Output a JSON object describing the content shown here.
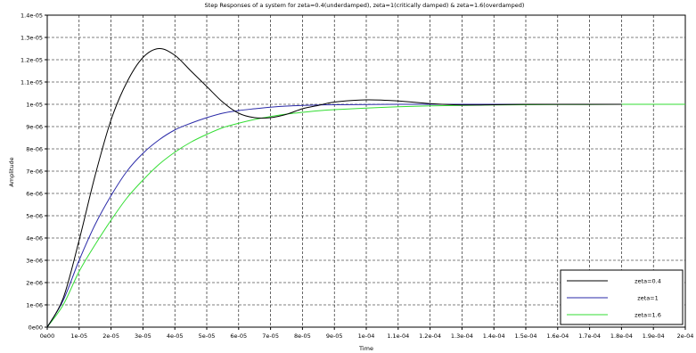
{
  "chart_data": {
    "type": "line",
    "title": "Step Responses of a system for zeta=0.4(underdamped), zeta=1(critically damped) & zeta=1.6(overdamped)",
    "xlabel": "Time",
    "ylabel": "Amplitude",
    "xlim": [
      0,
      0.0002
    ],
    "ylim": [
      0,
      1.4e-05
    ],
    "grid": true,
    "legend_position": "bottom-right",
    "x_tick_labels": [
      "0e00",
      "1e-05",
      "2e-05",
      "3e-05",
      "4e-05",
      "5e-05",
      "6e-05",
      "7e-05",
      "8e-05",
      "9e-05",
      "1e-04",
      "1.1e-04",
      "1.2e-04",
      "1.3e-04",
      "1.4e-04",
      "1.5e-04",
      "1.6e-04",
      "1.7e-04",
      "1.8e-04",
      "1.9e-04",
      "2e-04"
    ],
    "y_tick_labels": [
      "0e00",
      "1e-06",
      "2e-06",
      "3e-06",
      "4e-06",
      "5e-06",
      "6e-06",
      "7e-06",
      "8e-06",
      "9e-06",
      "1e-05",
      "1.1e-05",
      "1.2e-05",
      "1.3e-05",
      "1.4e-05"
    ],
    "x": [
      0,
      5e-06,
      1e-05,
      1.5e-05,
      2e-05,
      2.5e-05,
      3e-05,
      3.5e-05,
      4e-05,
      4.5e-05,
      5e-05,
      5.5e-05,
      6e-05,
      6.5e-05,
      7e-05,
      7.5e-05,
      8e-05,
      8.5e-05,
      9e-05,
      0.0001,
      0.00011,
      0.00012,
      0.00013,
      0.00014,
      0.00015,
      0.00016,
      0.00017,
      0.00018,
      0.00019,
      0.0002
    ],
    "series": [
      {
        "name": "zeta=0.4",
        "color": "#000000",
        "values": [
          0,
          1.3e-06,
          3.9e-06,
          6.8e-06,
          9.3e-06,
          1.1e-05,
          1.21e-05,
          1.25e-05,
          1.22e-05,
          1.15e-05,
          1.08e-05,
          1.01e-05,
          9.6e-06,
          9.4e-06,
          9.4e-06,
          9.55e-06,
          9.8e-06,
          9.95e-06,
          1.01e-05,
          1.02e-05,
          1.015e-05,
          1.003e-05,
          9.97e-06,
          9.98e-06,
          1e-05,
          1e-05,
          1e-05,
          1e-05,
          null,
          null
        ]
      },
      {
        "name": "zeta=1",
        "color": "#2a2aa8",
        "values": [
          0,
          1.2e-06,
          3e-06,
          4.6e-06,
          5.9e-06,
          7e-06,
          7.8e-06,
          8.4e-06,
          8.85e-06,
          9.15e-06,
          9.4e-06,
          9.6e-06,
          9.72e-06,
          9.8e-06,
          9.87e-06,
          9.92e-06,
          9.95e-06,
          9.97e-06,
          9.98e-06,
          9.99e-06,
          1e-05,
          1e-05,
          1e-05,
          1e-05,
          1e-05,
          1e-05,
          1e-05,
          1e-05,
          null,
          null
        ]
      },
      {
        "name": "zeta=1.6",
        "color": "#33dd33",
        "values": [
          0,
          1e-06,
          2.5e-06,
          3.7e-06,
          4.8e-06,
          5.8e-06,
          6.6e-06,
          7.3e-06,
          7.85e-06,
          8.3e-06,
          8.65e-06,
          8.95e-06,
          9.15e-06,
          9.32e-06,
          9.45e-06,
          9.56e-06,
          9.64e-06,
          9.71e-06,
          9.76e-06,
          9.83e-06,
          9.89e-06,
          9.93e-06,
          9.95e-06,
          9.97e-06,
          9.98e-06,
          9.99e-06,
          9.99e-06,
          1e-05,
          1e-05,
          1e-05
        ]
      }
    ]
  }
}
